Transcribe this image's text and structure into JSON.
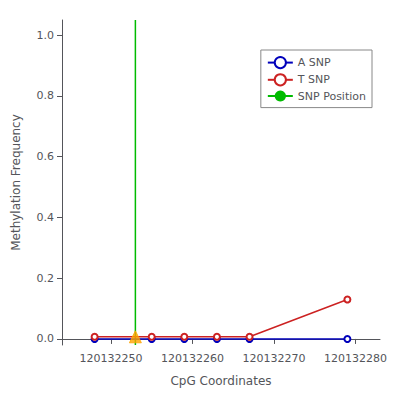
{
  "chart_data": {
    "type": "line",
    "xlabel": "CpG Coordinates",
    "ylabel": "Methylation Frequency",
    "xlim": [
      120132244,
      120132283
    ],
    "xticks": [
      120132250,
      120132260,
      120132270,
      120132280
    ],
    "ylim": [
      -0.02,
      1.05
    ],
    "yticks": [
      {
        "value": 0.0,
        "label": "0.0"
      },
      {
        "value": 0.2,
        "label": "0.2"
      },
      {
        "value": 0.4,
        "label": "0.4"
      },
      {
        "value": 0.6,
        "label": "0.6"
      },
      {
        "value": 0.8,
        "label": "0.8"
      },
      {
        "value": 1.0,
        "label": "1.0"
      }
    ],
    "grid": false,
    "legend": "upper right",
    "series": [
      {
        "name": "A SNP",
        "type": "line",
        "color": "#0000bb",
        "marker": "circle",
        "x": [
          120132248,
          120132255,
          120132259,
          120132263,
          120132267,
          120132279
        ],
        "values": [
          0.0,
          0.0,
          0.0,
          0.0,
          0.0,
          0.0
        ]
      },
      {
        "name": "T SNP",
        "type": "line",
        "color": "#cc2222",
        "marker": "circle",
        "x": [
          120132248,
          120132255,
          120132259,
          120132263,
          120132267,
          120132279
        ],
        "values": [
          0.007,
          0.007,
          0.007,
          0.007,
          0.007,
          0.13
        ]
      },
      {
        "name": "SNP Position",
        "type": "vline",
        "color": "#00bb00",
        "x": [
          120132253
        ]
      },
      {
        "type": "scatter",
        "color": "#FFA500",
        "marker": "triangle",
        "x": [
          120132253
        ],
        "values": [
          0.007
        ]
      }
    ]
  }
}
